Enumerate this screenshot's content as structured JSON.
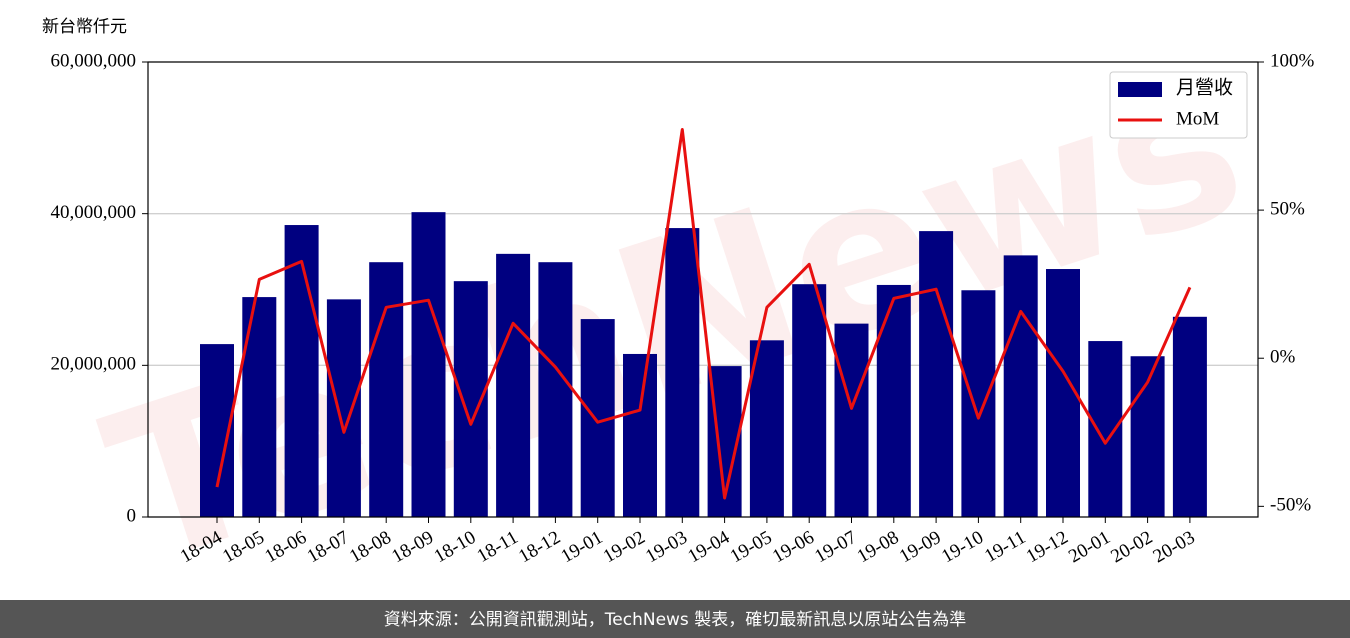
{
  "chart_data": {
    "type": "bar",
    "y_label": "新台幣仟元",
    "watermark": "TechNews",
    "categories": [
      "18-04",
      "18-05",
      "18-06",
      "18-07",
      "18-08",
      "18-09",
      "18-10",
      "18-11",
      "18-12",
      "19-01",
      "19-02",
      "19-03",
      "19-04",
      "19-05",
      "19-06",
      "19-07",
      "19-08",
      "19-09",
      "19-10",
      "19-11",
      "19-12",
      "20-01",
      "20-02",
      "20-03"
    ],
    "series": [
      {
        "name": "月營收",
        "type": "bar",
        "color": "#000080",
        "values": [
          22800000,
          29000000,
          38500000,
          28700000,
          33600000,
          40200000,
          31100000,
          34700000,
          33600000,
          26100000,
          21500000,
          38100000,
          19900000,
          23300000,
          30700000,
          25500000,
          30600000,
          37700000,
          29900000,
          34500000,
          32700000,
          23200000,
          21200000,
          26400000
        ]
      },
      {
        "name": "MoM",
        "type": "line",
        "axis": "y2",
        "color": "#e8100f",
        "values": [
          -43.5,
          26.6,
          32.7,
          -25.0,
          17.2,
          19.6,
          -22.3,
          11.8,
          -3.0,
          -21.6,
          -17.5,
          77.2,
          -47.2,
          17.2,
          31.7,
          -16.9,
          20.2,
          23.3,
          -20.2,
          15.8,
          -4.4,
          -28.7,
          -8.1,
          23.9
        ]
      }
    ],
    "ylim": [
      0,
      60000000
    ],
    "yticks": [
      0,
      {
        "value": 20000000,
        "label": "20,000,000"
      },
      {
        "value": 40000000,
        "label": "40,000,000"
      },
      {
        "value": 60000000,
        "label": "60,000,000"
      }
    ],
    "y2lim": [
      -53.6,
      100
    ],
    "y2ticks": [
      {
        "value": -50,
        "label": "-50%"
      },
      {
        "value": 0,
        "label": "0%"
      },
      {
        "value": 50,
        "label": "50%"
      },
      {
        "value": 100,
        "label": "100%"
      }
    ],
    "grid": true,
    "legend": "upper right"
  },
  "footer": "資料來源：公開資訊觀測站，TechNews 製表，確切最新訊息以原站公告為準"
}
